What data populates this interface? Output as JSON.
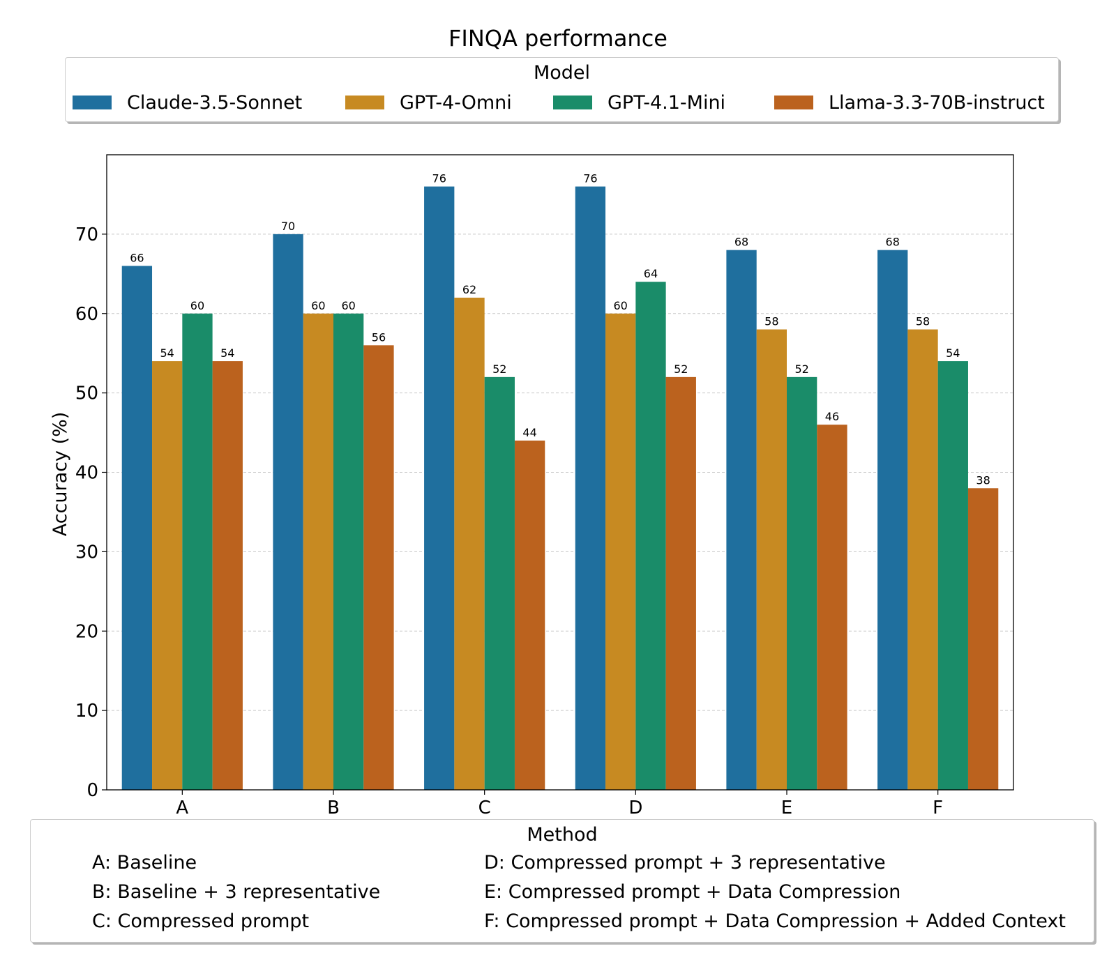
{
  "chart_data": {
    "type": "bar",
    "title": "FINQA performance",
    "xlabel": "",
    "ylabel": "Accuracy (%)",
    "ylim": [
      0,
      80
    ],
    "yticks": [
      0,
      10,
      20,
      30,
      40,
      50,
      60,
      70
    ],
    "grid": "y, dashed",
    "categories": [
      "A",
      "B",
      "C",
      "D",
      "E",
      "F"
    ],
    "series": [
      {
        "name": "Claude-3.5-Sonnet",
        "color": "#1f6f9e",
        "values": [
          66,
          70,
          76,
          76,
          68,
          68
        ]
      },
      {
        "name": "GPT-4-Omni",
        "color": "#c78a22",
        "values": [
          54,
          60,
          62,
          60,
          58,
          58
        ]
      },
      {
        "name": "GPT-4.1-Mini",
        "color": "#1a8c69",
        "values": [
          60,
          60,
          52,
          64,
          52,
          54
        ]
      },
      {
        "name": "Llama-3.3-70B-instruct",
        "color": "#bb621e",
        "values": [
          54,
          56,
          44,
          52,
          46,
          38
        ]
      }
    ],
    "legend_title": "Model",
    "legend_position": "top-center"
  },
  "method_legend": {
    "title": "Method",
    "items": [
      "A: Baseline",
      "B: Baseline + 3 representative",
      "C: Compressed prompt",
      "D: Compressed prompt + 3 representative",
      "E: Compressed prompt + Data Compression",
      "F: Compressed prompt + Data Compression + Added Context"
    ]
  }
}
